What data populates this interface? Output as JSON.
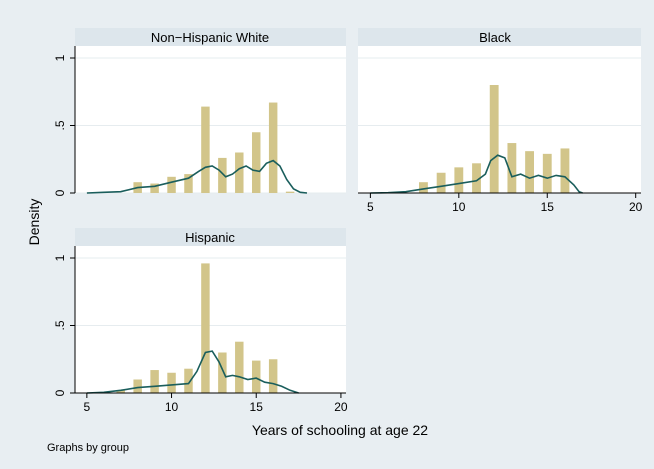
{
  "figure": {
    "ylabel": "Density",
    "xlabel": "Years of schooling at age 22",
    "note": "Graphs by group"
  },
  "colors": {
    "background": "#e8eef2",
    "panel": "#ffffff",
    "strip": "#dde6ec",
    "bar": "#d2c58a",
    "kde": "#1a5e5c",
    "axis": "#000000",
    "grid": "#e6ecef"
  },
  "chart_data": [
    {
      "type": "bar",
      "title": "Non−Hispanic White",
      "xlim": [
        4.3,
        20.3
      ],
      "ylim": [
        0,
        1
      ],
      "xticks": [],
      "yticks": [
        "0",
        ".5",
        "1"
      ],
      "bars": [
        {
          "x": 8,
          "y": 0.08
        },
        {
          "x": 9,
          "y": 0.07
        },
        {
          "x": 10,
          "y": 0.12
        },
        {
          "x": 11,
          "y": 0.14
        },
        {
          "x": 12,
          "y": 0.64
        },
        {
          "x": 13,
          "y": 0.26
        },
        {
          "x": 14,
          "y": 0.3
        },
        {
          "x": 15,
          "y": 0.45
        },
        {
          "x": 16,
          "y": 0.67
        },
        {
          "x": 17,
          "y": 0.01
        }
      ],
      "kde": [
        [
          5,
          0
        ],
        [
          6,
          0.005
        ],
        [
          7,
          0.01
        ],
        [
          8,
          0.04
        ],
        [
          9,
          0.05
        ],
        [
          10,
          0.08
        ],
        [
          11,
          0.11
        ],
        [
          11.6,
          0.16
        ],
        [
          12,
          0.19
        ],
        [
          12.4,
          0.2
        ],
        [
          12.8,
          0.17
        ],
        [
          13.2,
          0.12
        ],
        [
          13.6,
          0.14
        ],
        [
          14,
          0.18
        ],
        [
          14.4,
          0.2
        ],
        [
          14.8,
          0.17
        ],
        [
          15.2,
          0.16
        ],
        [
          15.6,
          0.22
        ],
        [
          16,
          0.24
        ],
        [
          16.4,
          0.2
        ],
        [
          16.8,
          0.1
        ],
        [
          17.2,
          0.03
        ],
        [
          17.6,
          0.005
        ],
        [
          18,
          0
        ]
      ]
    },
    {
      "type": "bar",
      "title": "Black",
      "xlim": [
        4.3,
        20.3
      ],
      "ylim": [
        0,
        1
      ],
      "xticks": [
        "5",
        "10",
        "15",
        "20"
      ],
      "yticks": [],
      "bars": [
        {
          "x": 8,
          "y": 0.08
        },
        {
          "x": 9,
          "y": 0.15
        },
        {
          "x": 10,
          "y": 0.19
        },
        {
          "x": 11,
          "y": 0.22
        },
        {
          "x": 12,
          "y": 0.8
        },
        {
          "x": 13,
          "y": 0.37
        },
        {
          "x": 14,
          "y": 0.31
        },
        {
          "x": 15,
          "y": 0.29
        },
        {
          "x": 16,
          "y": 0.33
        }
      ],
      "kde": [
        [
          5,
          0
        ],
        [
          6,
          0.002
        ],
        [
          7,
          0.01
        ],
        [
          8,
          0.03
        ],
        [
          9,
          0.05
        ],
        [
          10,
          0.07
        ],
        [
          11,
          0.09
        ],
        [
          11.5,
          0.14
        ],
        [
          11.8,
          0.24
        ],
        [
          12.2,
          0.28
        ],
        [
          12.6,
          0.26
        ],
        [
          13,
          0.12
        ],
        [
          13.5,
          0.14
        ],
        [
          14,
          0.11
        ],
        [
          14.5,
          0.13
        ],
        [
          15,
          0.11
        ],
        [
          15.5,
          0.13
        ],
        [
          16,
          0.12
        ],
        [
          16.5,
          0.06
        ],
        [
          16.8,
          0.01
        ],
        [
          17,
          0
        ]
      ]
    },
    {
      "type": "bar",
      "title": "Hispanic",
      "xlim": [
        4.3,
        20.3
      ],
      "ylim": [
        0,
        1
      ],
      "xticks": [
        "5",
        "10",
        "15",
        "20"
      ],
      "yticks": [
        "0",
        ".5",
        "1"
      ],
      "bars": [
        {
          "x": 7,
          "y": 0.02
        },
        {
          "x": 8,
          "y": 0.1
        },
        {
          "x": 9,
          "y": 0.17
        },
        {
          "x": 10,
          "y": 0.15
        },
        {
          "x": 11,
          "y": 0.18
        },
        {
          "x": 12,
          "y": 0.96
        },
        {
          "x": 13,
          "y": 0.3
        },
        {
          "x": 14,
          "y": 0.38
        },
        {
          "x": 15,
          "y": 0.24
        },
        {
          "x": 16,
          "y": 0.25
        }
      ],
      "kde": [
        [
          5,
          0
        ],
        [
          6,
          0.005
        ],
        [
          7,
          0.02
        ],
        [
          8,
          0.04
        ],
        [
          9,
          0.05
        ],
        [
          10,
          0.06
        ],
        [
          11,
          0.07
        ],
        [
          11.5,
          0.16
        ],
        [
          12,
          0.3
        ],
        [
          12.4,
          0.31
        ],
        [
          12.8,
          0.23
        ],
        [
          13.2,
          0.12
        ],
        [
          13.6,
          0.13
        ],
        [
          14,
          0.12
        ],
        [
          14.5,
          0.1
        ],
        [
          15,
          0.11
        ],
        [
          15.5,
          0.08
        ],
        [
          16,
          0.07
        ],
        [
          16.5,
          0.05
        ],
        [
          17,
          0.02
        ],
        [
          17.5,
          0
        ]
      ]
    }
  ]
}
